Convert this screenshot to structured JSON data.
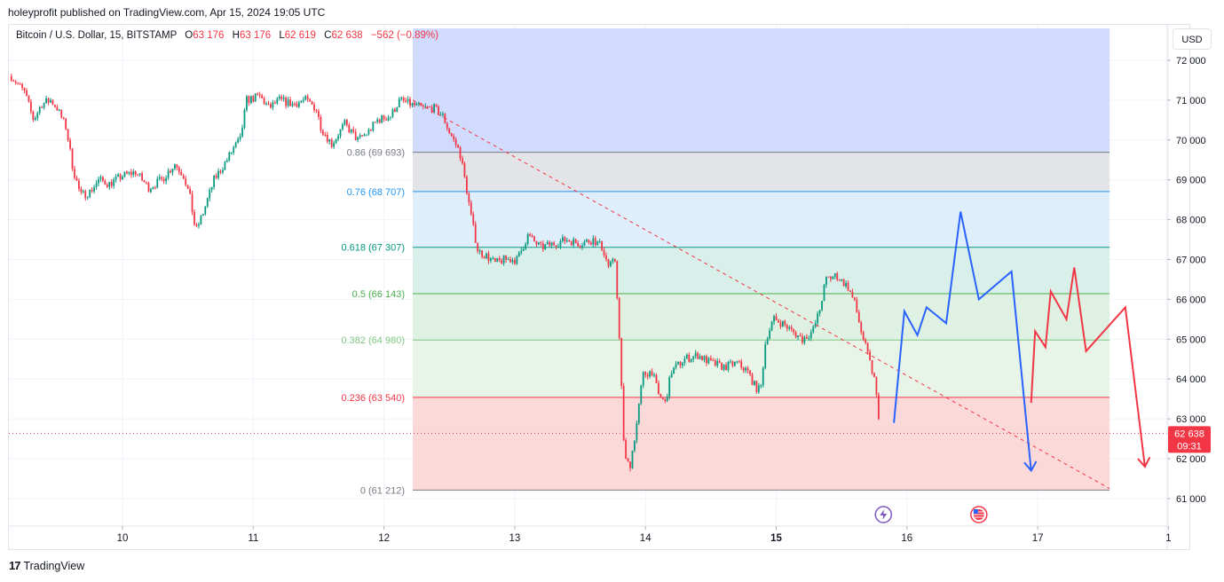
{
  "header": {
    "title": "holeyprofit published on TradingView.com, Apr 15, 2024 19:05 UTC"
  },
  "legend": {
    "symbol": "Bitcoin / U.S. Dollar, 15, BITSTAMP",
    "o_label": "O",
    "o_value": "63 176",
    "h_label": "H",
    "h_value": "63 176",
    "l_label": "L",
    "l_value": "62 619",
    "c_label": "C",
    "c_value": "62 638",
    "change": "−562 (−0.89%)"
  },
  "currency_button": "USD",
  "footer": {
    "logo": "17",
    "brand": "TradingView"
  },
  "colors": {
    "up": "#089981",
    "down": "#f23645",
    "projection_blue": "#2962ff",
    "projection_red": "#f23645"
  },
  "chart_data": {
    "type": "candlestick",
    "symbol": "BTCUSD",
    "interval": "15",
    "y_axis": {
      "min": 60300,
      "max": 72800,
      "ticks": [
        "72 000",
        "71 000",
        "70 000",
        "69 000",
        "68 000",
        "67 000",
        "66 000",
        "65 000",
        "64 000",
        "63 000",
        "62 000",
        "61 000"
      ],
      "tick_values": [
        72000,
        71000,
        70000,
        69000,
        68000,
        67000,
        66000,
        65000,
        64000,
        63000,
        62000,
        61000
      ]
    },
    "x_axis": {
      "min": 9.15,
      "max": 18,
      "ticks": [
        "10",
        "11",
        "12",
        "13",
        "14",
        "15",
        "16",
        "17",
        "1"
      ],
      "tick_values": [
        10,
        11,
        12,
        13,
        14,
        15,
        16,
        17,
        18
      ]
    },
    "price_path": [
      [
        9.15,
        71600
      ],
      [
        9.25,
        71200
      ],
      [
        9.32,
        70500
      ],
      [
        9.38,
        70900
      ],
      [
        9.45,
        71000
      ],
      [
        9.5,
        70800
      ],
      [
        9.57,
        70300
      ],
      [
        9.62,
        69300
      ],
      [
        9.68,
        68600
      ],
      [
        9.75,
        68700
      ],
      [
        9.82,
        69000
      ],
      [
        9.9,
        68900
      ],
      [
        10.0,
        69100
      ],
      [
        10.1,
        69200
      ],
      [
        10.2,
        68800
      ],
      [
        10.3,
        69000
      ],
      [
        10.4,
        69400
      ],
      [
        10.47,
        69100
      ],
      [
        10.52,
        68500
      ],
      [
        10.56,
        67700
      ],
      [
        10.62,
        68200
      ],
      [
        10.7,
        69000
      ],
      [
        10.8,
        69500
      ],
      [
        10.85,
        69800
      ],
      [
        10.9,
        70000
      ],
      [
        10.95,
        71000
      ],
      [
        11.05,
        71100
      ],
      [
        11.12,
        70800
      ],
      [
        11.2,
        71000
      ],
      [
        11.3,
        70900
      ],
      [
        11.4,
        71000
      ],
      [
        11.48,
        70800
      ],
      [
        11.52,
        70300
      ],
      [
        11.6,
        69900
      ],
      [
        11.7,
        70400
      ],
      [
        11.8,
        70000
      ],
      [
        11.88,
        70200
      ],
      [
        11.95,
        70500
      ],
      [
        12.05,
        70600
      ],
      [
        12.12,
        71000
      ],
      [
        12.2,
        70900
      ],
      [
        12.3,
        70800
      ],
      [
        12.38,
        70800
      ],
      [
        12.45,
        70600
      ],
      [
        12.5,
        70200
      ],
      [
        12.58,
        69700
      ],
      [
        12.63,
        68800
      ],
      [
        12.67,
        68000
      ],
      [
        12.72,
        67200
      ],
      [
        12.78,
        67100
      ],
      [
        12.85,
        66900
      ],
      [
        12.92,
        67000
      ],
      [
        13.02,
        67000
      ],
      [
        13.1,
        67600
      ],
      [
        13.2,
        67300
      ],
      [
        13.3,
        67400
      ],
      [
        13.4,
        67500
      ],
      [
        13.5,
        67400
      ],
      [
        13.6,
        67500
      ],
      [
        13.67,
        67300
      ],
      [
        13.72,
        66800
      ],
      [
        13.77,
        67000
      ],
      [
        13.8,
        65000
      ],
      [
        13.84,
        62000
      ],
      [
        13.88,
        61800
      ],
      [
        13.93,
        62800
      ],
      [
        13.98,
        64100
      ],
      [
        14.05,
        64200
      ],
      [
        14.1,
        63600
      ],
      [
        14.15,
        63400
      ],
      [
        14.2,
        64200
      ],
      [
        14.3,
        64500
      ],
      [
        14.4,
        64600
      ],
      [
        14.5,
        64400
      ],
      [
        14.6,
        64300
      ],
      [
        14.7,
        64400
      ],
      [
        14.78,
        64200
      ],
      [
        14.84,
        63800
      ],
      [
        14.88,
        63700
      ],
      [
        14.92,
        65000
      ],
      [
        14.98,
        65500
      ],
      [
        15.05,
        65400
      ],
      [
        15.12,
        65200
      ],
      [
        15.2,
        65000
      ],
      [
        15.28,
        65200
      ],
      [
        15.33,
        65700
      ],
      [
        15.38,
        66500
      ],
      [
        15.46,
        66600
      ],
      [
        15.55,
        66300
      ],
      [
        15.6,
        65900
      ],
      [
        15.65,
        65200
      ],
      [
        15.7,
        64600
      ],
      [
        15.75,
        64000
      ],
      [
        15.8,
        62638
      ]
    ],
    "last_price": 62638,
    "last_price_label": "62 638",
    "countdown_label": "09:31",
    "fibonacci": {
      "levels": [
        {
          "ratio": 1,
          "price": 71000,
          "label": "",
          "color": "#2962ff"
        },
        {
          "ratio": 0.86,
          "price": 69693,
          "label": "0.86 (69 693)",
          "color": "#787b86"
        },
        {
          "ratio": 0.76,
          "price": 68707,
          "label": "0.76 (68 707)",
          "color": "#2196f3"
        },
        {
          "ratio": 0.618,
          "price": 67307,
          "label": "0.618 (67 307)",
          "color": "#089981"
        },
        {
          "ratio": 0.5,
          "price": 66143,
          "label": "0.5 (66 143)",
          "color": "#4caf50"
        },
        {
          "ratio": 0.382,
          "price": 64980,
          "label": "0.382 (64 980)",
          "color": "#81c784"
        },
        {
          "ratio": 0.236,
          "price": 63540,
          "label": "0.236 (63 540)",
          "color": "#f23645"
        },
        {
          "ratio": 0,
          "price": 61212,
          "label": "0 (61 212)",
          "color": "#787b86"
        }
      ],
      "x_start": 12.22,
      "x_end": 17.55,
      "top_price": 72800
    },
    "trendline": {
      "from": [
        12.22,
        71000
      ],
      "to": [
        17.55,
        61250
      ],
      "color": "#f23645",
      "style": "dashed"
    },
    "projection_blue": [
      [
        15.9,
        62900
      ],
      [
        15.98,
        65700
      ],
      [
        16.08,
        65100
      ],
      [
        16.15,
        65800
      ],
      [
        16.3,
        65400
      ],
      [
        16.41,
        68200
      ],
      [
        16.55,
        66000
      ],
      [
        16.8,
        66700
      ],
      [
        16.95,
        61700
      ]
    ],
    "projection_red": [
      [
        16.95,
        63400
      ],
      [
        16.98,
        65200
      ],
      [
        17.06,
        64800
      ],
      [
        17.1,
        66200
      ],
      [
        17.22,
        65500
      ],
      [
        17.28,
        66800
      ],
      [
        17.37,
        64700
      ],
      [
        17.67,
        65800
      ],
      [
        17.82,
        61800
      ]
    ],
    "event_icons": [
      {
        "x": 15.82,
        "icon": "lightning-icon",
        "color": "#7e57c2"
      },
      {
        "x": 16.55,
        "icon": "us-flag-icon",
        "color": "#f23645"
      }
    ]
  }
}
